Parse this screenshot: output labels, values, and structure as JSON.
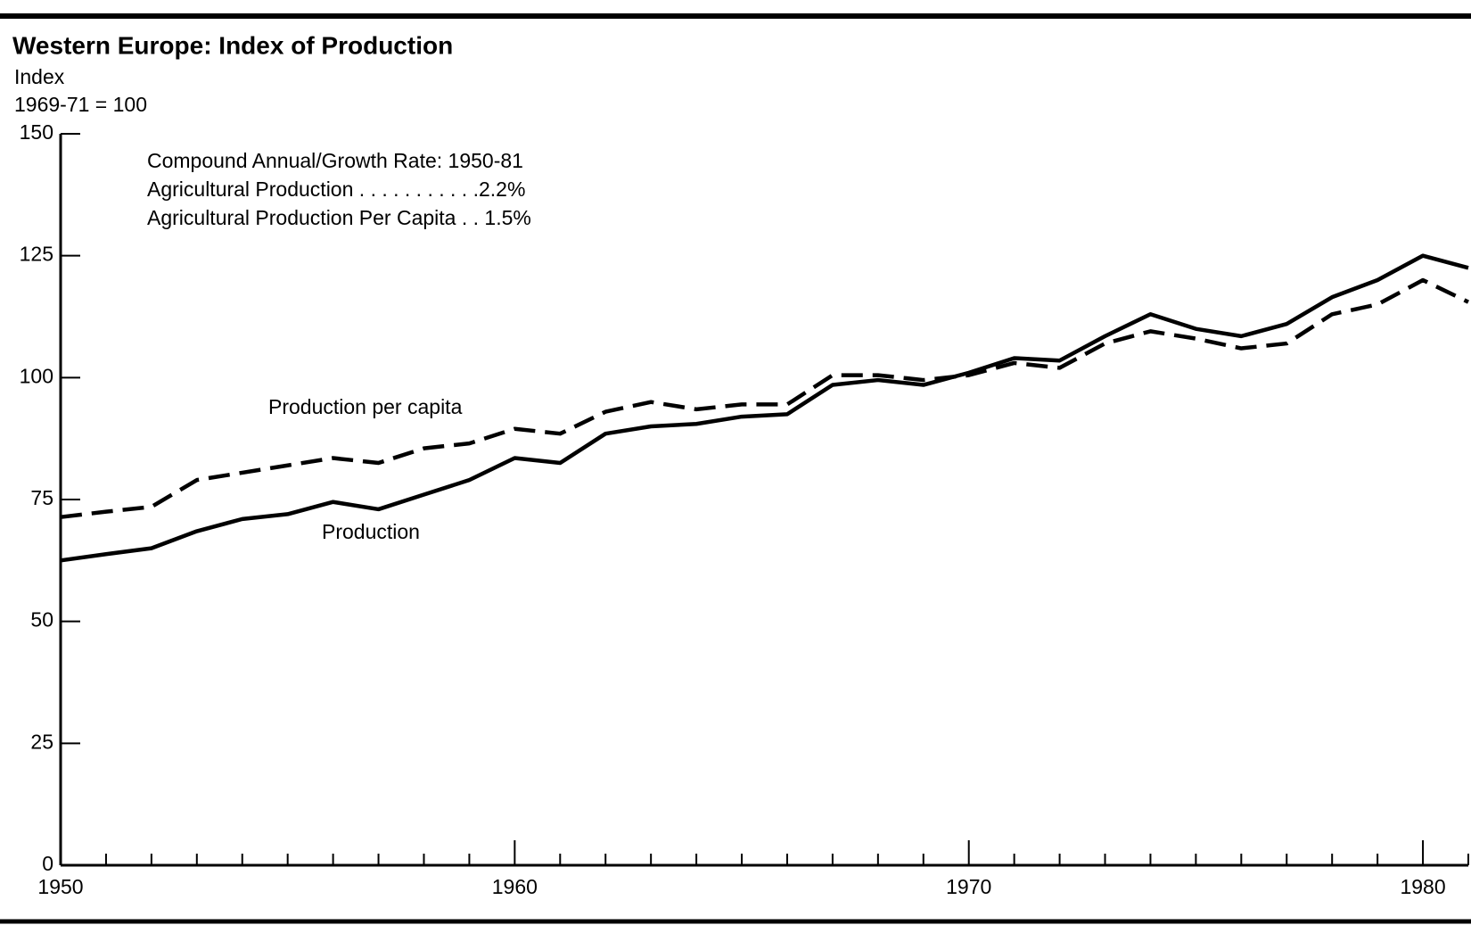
{
  "chart_data": {
    "type": "line",
    "title": "Western Europe: Index of Production",
    "y_label": "Index",
    "y_sublabel": "1969-71 = 100",
    "annotations": [
      "Compound Annual/Growth Rate: 1950-81",
      "Agricultural Production . . . . . . . . . . .2.2%",
      "Agricultural Production Per Capita . . 1.5%"
    ],
    "x": [
      1950,
      1951,
      1952,
      1953,
      1954,
      1955,
      1956,
      1957,
      1958,
      1959,
      1960,
      1961,
      1962,
      1963,
      1964,
      1965,
      1966,
      1967,
      1968,
      1969,
      1970,
      1971,
      1972,
      1973,
      1974,
      1975,
      1976,
      1977,
      1978,
      1979,
      1980,
      1981
    ],
    "series": [
      {
        "name": "Production",
        "color": "#000000",
        "dash": false,
        "values": [
          62.5,
          63.8,
          65,
          68.5,
          71,
          72,
          74.5,
          73,
          76,
          79,
          83.5,
          82.5,
          88.5,
          90,
          90.5,
          92,
          92.5,
          98.5,
          99.5,
          98.5,
          101,
          104,
          103.5,
          108.5,
          113,
          110,
          108.5,
          111,
          116.5,
          120,
          125,
          122.5
        ]
      },
      {
        "name": "Production per capita",
        "color": "#000000",
        "dash": true,
        "values": [
          71.4,
          72.5,
          73.5,
          79,
          80.5,
          82,
          83.5,
          82.5,
          85.5,
          86.5,
          89.5,
          88.5,
          93,
          95,
          93.5,
          94.5,
          94.5,
          100.5,
          100.5,
          99.5,
          100.5,
          103,
          102,
          107,
          109.5,
          108,
          106,
          107,
          113,
          115,
          120,
          115.5
        ]
      }
    ],
    "xlim": [
      1950,
      1981
    ],
    "ylim": [
      0,
      150
    ],
    "xticks": [
      1950,
      1960,
      1970,
      1980
    ],
    "xminorticks": [
      1951,
      1952,
      1953,
      1954,
      1955,
      1956,
      1957,
      1958,
      1959,
      1961,
      1962,
      1963,
      1964,
      1965,
      1966,
      1967,
      1968,
      1969,
      1971,
      1972,
      1973,
      1974,
      1975,
      1976,
      1977,
      1978,
      1979,
      1981
    ],
    "yticks": [
      0,
      25,
      50,
      75,
      100,
      125,
      150
    ],
    "grid": false
  }
}
